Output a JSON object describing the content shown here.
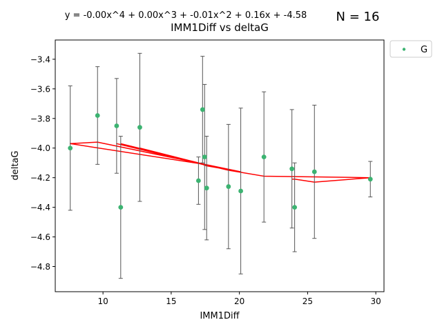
{
  "chart_data": {
    "type": "scatter",
    "title": "IMM1Diff vs deltaG",
    "equation": "y = -0.00x^4 + 0.00x^3 + -0.01x^2 + 0.16x + -4.58",
    "n_label": "N = 16",
    "xlabel": "IMM1Diff",
    "ylabel": "deltaG",
    "xlim": [
      6.5,
      30.6
    ],
    "ylim": [
      -4.97,
      -3.27
    ],
    "xticks": [
      10,
      15,
      20,
      25,
      30
    ],
    "yticks": [
      -3.4,
      -3.6,
      -3.8,
      -4.0,
      -4.2,
      -4.4,
      -4.6,
      -4.8
    ],
    "xtick_labels": [
      "10",
      "15",
      "20",
      "25",
      "30"
    ],
    "ytick_labels": [
      "−3.4",
      "−3.6",
      "−3.8",
      "−4.0",
      "−4.2",
      "−4.4",
      "−4.6",
      "−4.8"
    ],
    "grid": false,
    "legend_position": "outside-top-right",
    "series": [
      {
        "name": "G",
        "color": "#3cb371",
        "points": [
          {
            "x": 7.6,
            "y": -4.0,
            "err": 0.42
          },
          {
            "x": 9.6,
            "y": -3.78,
            "err": 0.33
          },
          {
            "x": 11.0,
            "y": -3.85,
            "err": 0.32
          },
          {
            "x": 11.3,
            "y": -4.4,
            "err": 0.48
          },
          {
            "x": 12.7,
            "y": -3.86,
            "err": 0.5
          },
          {
            "x": 17.0,
            "y": -4.22,
            "err": 0.16
          },
          {
            "x": 17.3,
            "y": -3.74,
            "err": 0.36
          },
          {
            "x": 17.45,
            "y": -4.06,
            "err": 0.49
          },
          {
            "x": 17.6,
            "y": -4.27,
            "err": 0.35
          },
          {
            "x": 19.2,
            "y": -4.26,
            "err": 0.42
          },
          {
            "x": 20.1,
            "y": -4.29,
            "err": 0.56
          },
          {
            "x": 21.8,
            "y": -4.06,
            "err": 0.44
          },
          {
            "x": 23.85,
            "y": -4.14,
            "err": 0.4
          },
          {
            "x": 24.05,
            "y": -4.4,
            "err": 0.3
          },
          {
            "x": 25.5,
            "y": -4.16,
            "err": 0.45
          },
          {
            "x": 29.6,
            "y": -4.21,
            "err": 0.12
          }
        ]
      }
    ],
    "fit_line": {
      "color": "#ff0000",
      "comment_order": "fit evaluated at data order",
      "xy": [
        [
          7.6,
          -3.97
        ],
        [
          9.6,
          -3.96
        ],
        [
          11.0,
          -3.97
        ],
        [
          11.3,
          -3.97
        ],
        [
          12.7,
          -4.0
        ],
        [
          17.0,
          -4.1
        ],
        [
          17.3,
          -4.11
        ],
        [
          17.45,
          -4.11
        ],
        [
          17.6,
          -4.12
        ],
        [
          19.2,
          -4.15
        ],
        [
          20.1,
          -4.16
        ],
        [
          21.8,
          -4.19
        ],
        [
          23.85,
          -4.21
        ],
        [
          24.05,
          -4.21
        ],
        [
          25.5,
          -4.23
        ],
        [
          29.6,
          -4.2
        ]
      ],
      "path_order": [
        3,
        7,
        0,
        1,
        10,
        8,
        5,
        4,
        6,
        2,
        9,
        11,
        15,
        14,
        13,
        12
      ]
    },
    "errorbar_color": "#555555"
  }
}
